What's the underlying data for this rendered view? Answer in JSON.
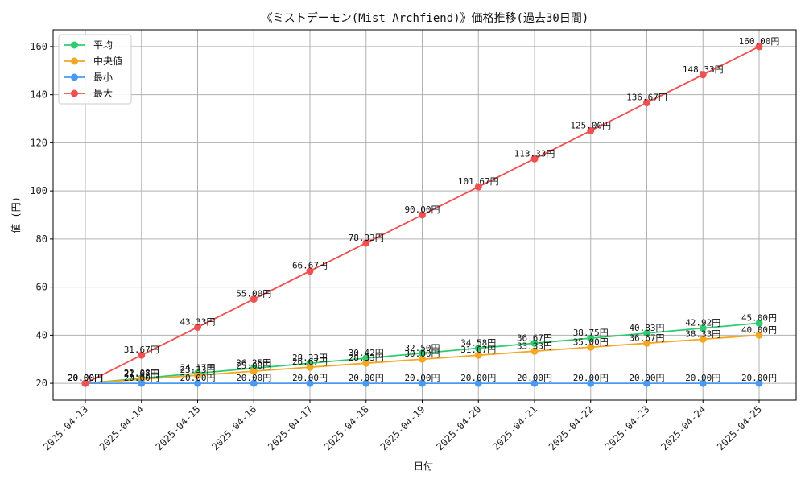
{
  "chart_data": {
    "type": "line",
    "title": "《ミストデーモン(Mist Archfiend)》価格推移(過去30日間)",
    "xlabel": "日付",
    "ylabel": "値 (円)",
    "x": [
      "2025-04-13",
      "2025-04-14",
      "2025-04-15",
      "2025-04-16",
      "2025-04-17",
      "2025-04-18",
      "2025-04-19",
      "2025-04-20",
      "2025-04-21",
      "2025-04-22",
      "2025-04-23",
      "2025-04-24",
      "2025-04-25"
    ],
    "ylim": [
      13,
      167
    ],
    "yticks": [
      20,
      40,
      60,
      80,
      100,
      120,
      140,
      160
    ],
    "grid": true,
    "legend_position": "top-left",
    "value_suffix": "円",
    "series": [
      {
        "name": "平均",
        "color": "#2ecc71",
        "values": [
          20.0,
          22.08,
          24.17,
          26.25,
          28.33,
          30.42,
          32.5,
          34.58,
          36.67,
          38.75,
          40.83,
          42.92,
          45.0
        ]
      },
      {
        "name": "中央値",
        "color": "#f5a623",
        "values": [
          20.0,
          21.67,
          23.33,
          25.0,
          26.67,
          28.33,
          30.0,
          31.67,
          33.33,
          35.0,
          36.67,
          38.33,
          40.0
        ]
      },
      {
        "name": "最小",
        "color": "#4a9af5",
        "values": [
          20.0,
          20.0,
          20.0,
          20.0,
          20.0,
          20.0,
          20.0,
          20.0,
          20.0,
          20.0,
          20.0,
          20.0,
          20.0
        ]
      },
      {
        "name": "最大",
        "color": "#f05050",
        "values": [
          20.0,
          31.67,
          43.33,
          55.0,
          66.67,
          78.33,
          90.0,
          101.67,
          113.33,
          125.0,
          136.67,
          148.33,
          160.0
        ]
      }
    ]
  }
}
